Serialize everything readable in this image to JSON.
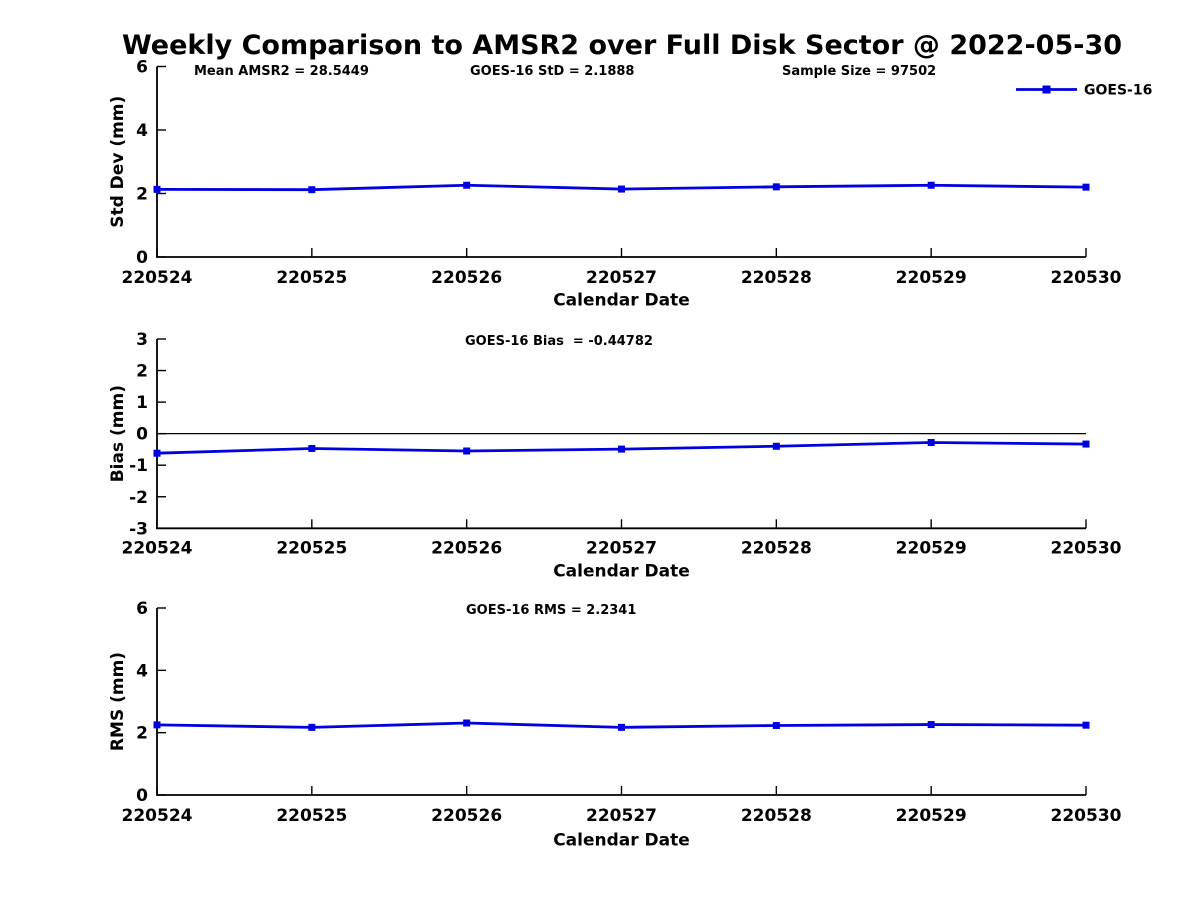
{
  "title": "Weekly Comparison to AMSR2 over Full Disk Sector @ 2022-05-30",
  "colors": {
    "series": "#0000e0",
    "axis": "#000000",
    "text": "#000000",
    "background": "#ffffff",
    "zero_line": "#000000"
  },
  "legend": {
    "position": "top-right",
    "entries": [
      {
        "label": "GOES-16",
        "color": "#0000e0",
        "marker": "square"
      }
    ]
  },
  "x_axis": {
    "label": "Calendar Date",
    "categories": [
      "220524",
      "220525",
      "220526",
      "220527",
      "220528",
      "220529",
      "220530"
    ]
  },
  "chart_data": [
    {
      "type": "line",
      "name": "std-dev-panel",
      "title": "",
      "annotations": [
        "Mean AMSR2 = 28.5449",
        "GOES-16 StD = 2.1888",
        "Sample Size = 97502"
      ],
      "xlabel": "Calendar Date",
      "ylabel": "Std Dev (mm)",
      "categories": [
        "220524",
        "220525",
        "220526",
        "220527",
        "220528",
        "220529",
        "220530"
      ],
      "series": [
        {
          "name": "GOES-16",
          "values": [
            2.13,
            2.12,
            2.26,
            2.14,
            2.21,
            2.26,
            2.2
          ]
        }
      ],
      "ylim": [
        0,
        6
      ],
      "yticks": [
        0,
        2,
        4,
        6
      ],
      "grid": false,
      "zero_line": false,
      "legend_visible": true
    },
    {
      "type": "line",
      "name": "bias-panel",
      "title": "",
      "annotations": [
        "GOES-16 Bias  = -0.44782"
      ],
      "xlabel": "Calendar Date",
      "ylabel": "Bias (mm)",
      "categories": [
        "220524",
        "220525",
        "220526",
        "220527",
        "220528",
        "220529",
        "220530"
      ],
      "series": [
        {
          "name": "GOES-16",
          "values": [
            -0.62,
            -0.47,
            -0.55,
            -0.49,
            -0.4,
            -0.28,
            -0.33
          ]
        }
      ],
      "ylim": [
        -3,
        3
      ],
      "yticks": [
        -3,
        -2,
        -1,
        0,
        1,
        2,
        3
      ],
      "grid": false,
      "zero_line": true,
      "legend_visible": false
    },
    {
      "type": "line",
      "name": "rms-panel",
      "title": "",
      "annotations": [
        "GOES-16 RMS = 2.2341"
      ],
      "xlabel": "Calendar Date",
      "ylabel": "RMS (mm)",
      "categories": [
        "220524",
        "220525",
        "220526",
        "220527",
        "220528",
        "220529",
        "220530"
      ],
      "series": [
        {
          "name": "GOES-16",
          "values": [
            2.25,
            2.17,
            2.31,
            2.17,
            2.23,
            2.26,
            2.24
          ]
        }
      ],
      "ylim": [
        0,
        6
      ],
      "yticks": [
        0,
        2,
        4,
        6
      ],
      "grid": false,
      "zero_line": false,
      "legend_visible": false
    }
  ]
}
